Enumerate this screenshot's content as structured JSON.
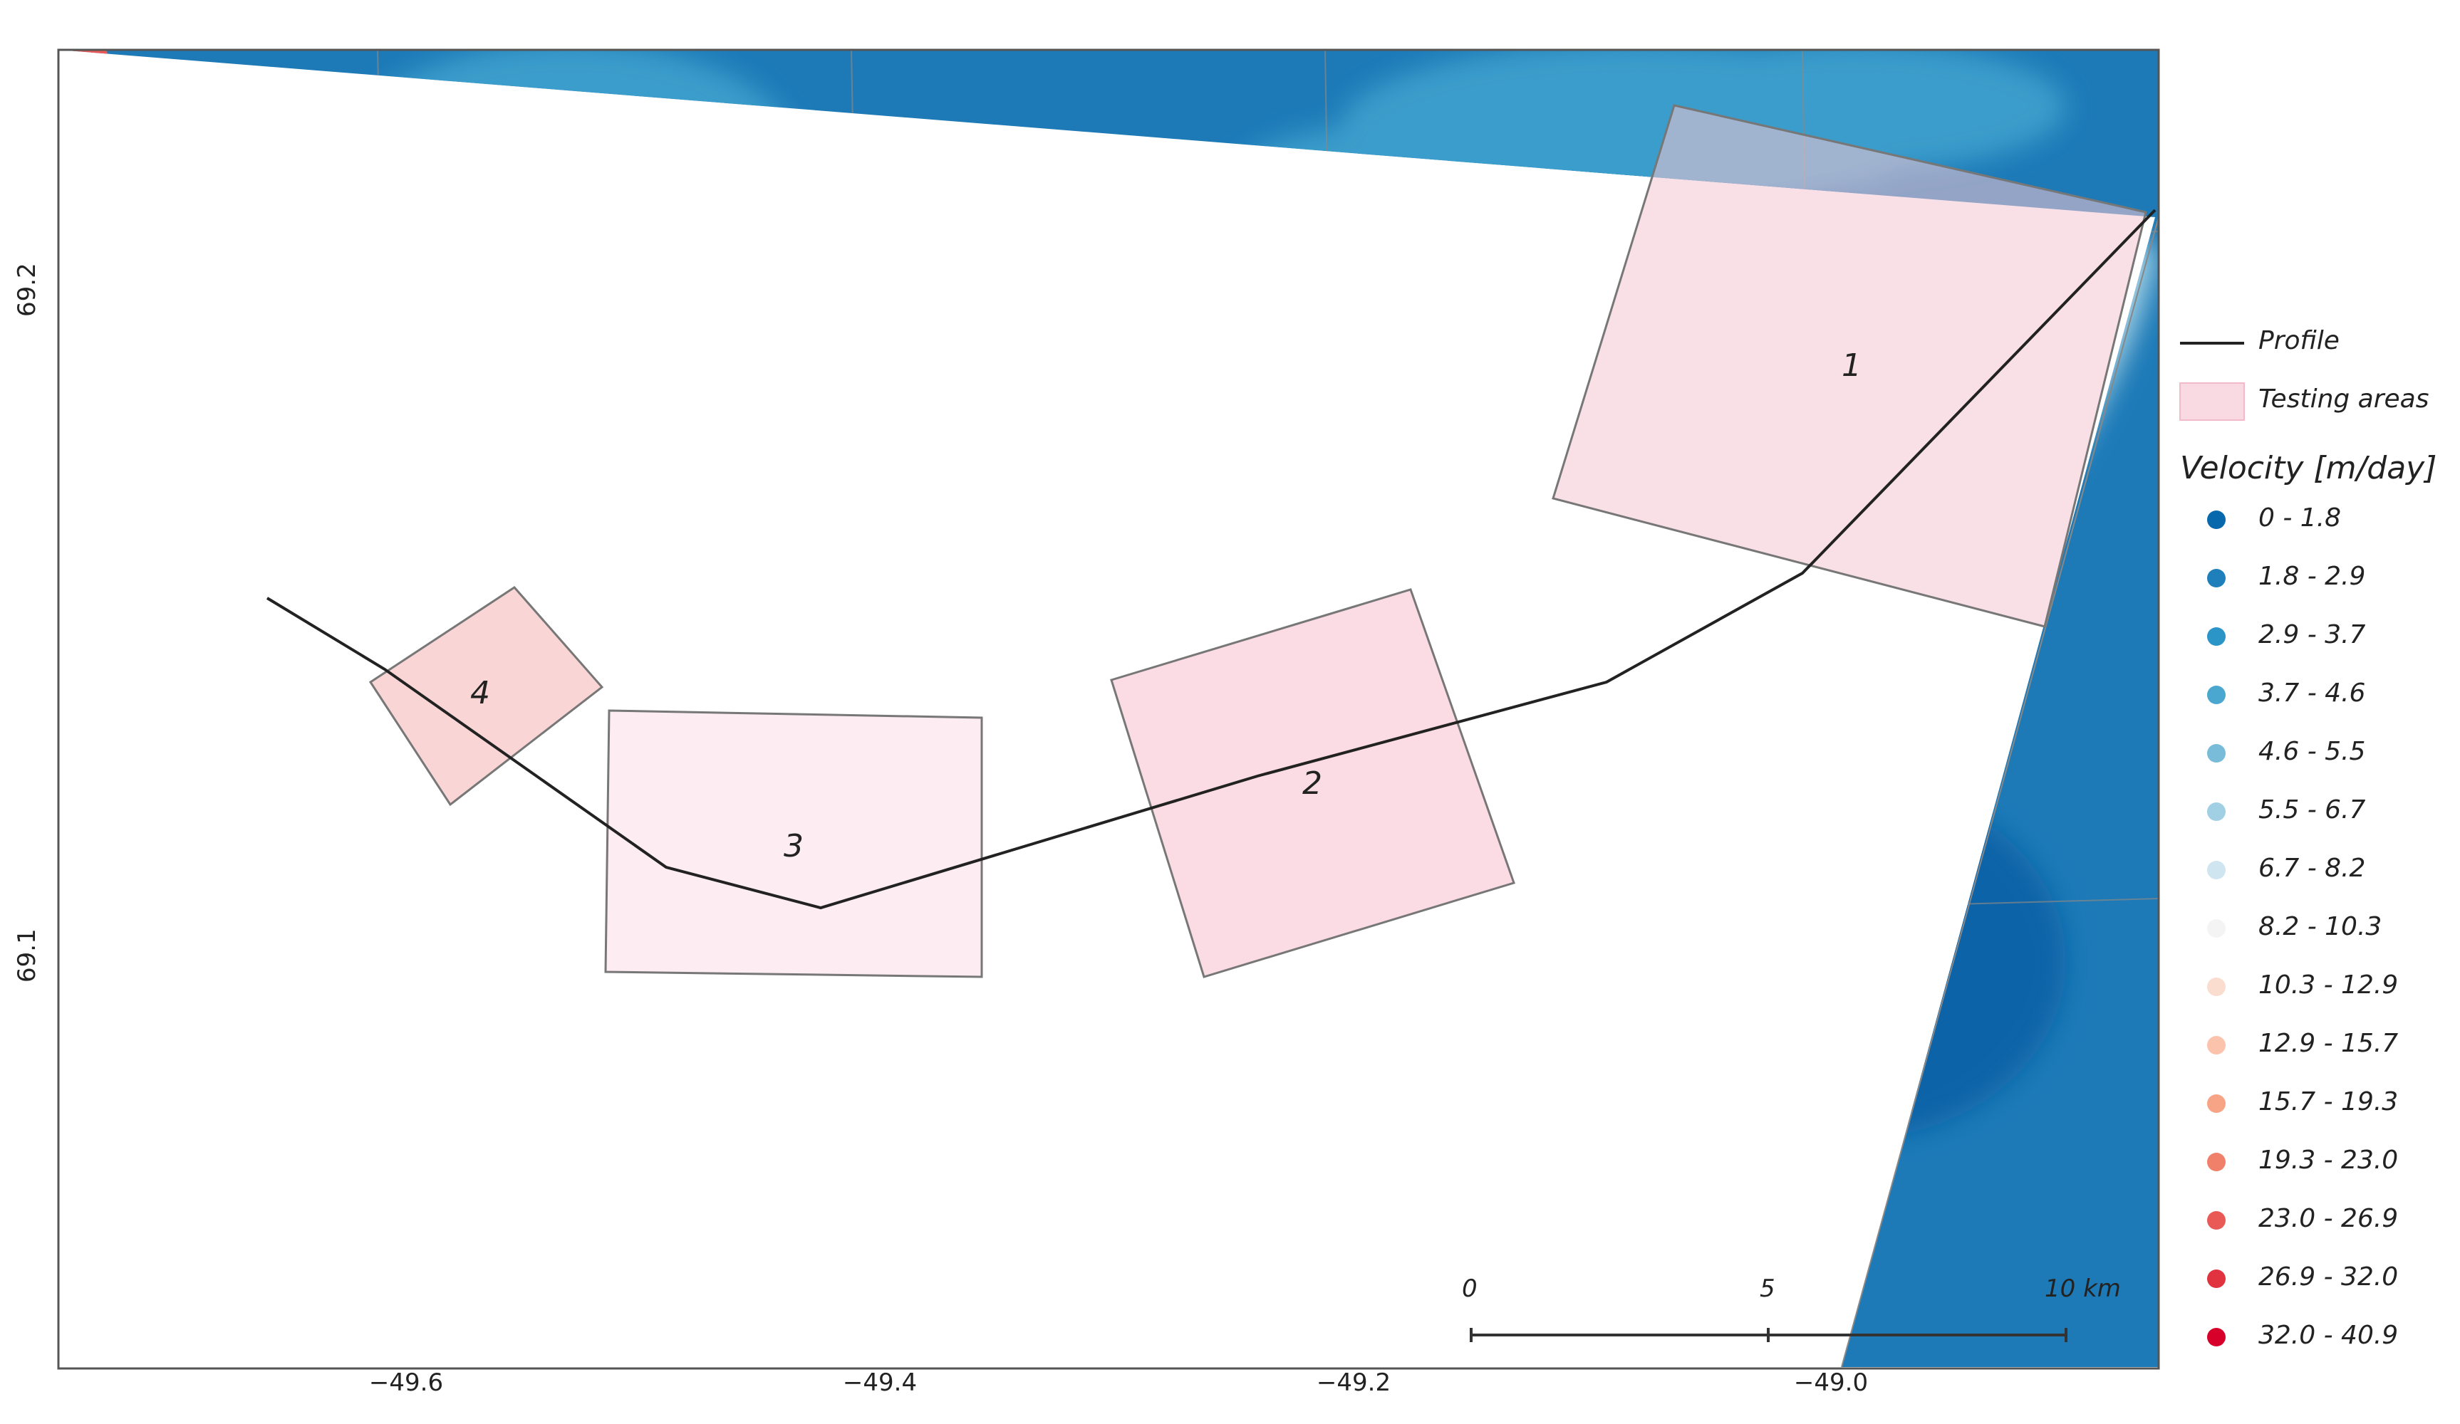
{
  "axes": {
    "x_ticks": [
      "−49.6",
      "−49.4",
      "−49.2",
      "−49.0"
    ],
    "y_ticks": [
      "69.2",
      "69.1"
    ]
  },
  "testing_areas": [
    {
      "label": "1"
    },
    {
      "label": "2"
    },
    {
      "label": "3"
    },
    {
      "label": "4"
    }
  ],
  "legend": {
    "profile_label": "Profile",
    "testing_areas_label": "Testing areas",
    "velocity_title": "Velocity [m/day]",
    "classes": [
      {
        "label": "0 - 1.8",
        "color": "#0868ac"
      },
      {
        "label": "1.8 - 2.9",
        "color": "#1f7fbb"
      },
      {
        "label": "2.9 - 3.7",
        "color": "#2b95c7"
      },
      {
        "label": "3.7 - 4.6",
        "color": "#4aa7cf"
      },
      {
        "label": "4.6 - 5.5",
        "color": "#78bcd9"
      },
      {
        "label": "5.5 - 6.7",
        "color": "#a1d0e4"
      },
      {
        "label": "6.7 - 8.2",
        "color": "#cfe6f0"
      },
      {
        "label": "8.2 - 10.3",
        "color": "#f4f4f4"
      },
      {
        "label": "10.3 - 12.9",
        "color": "#fbddd0"
      },
      {
        "label": "12.9 - 15.7",
        "color": "#fbc3ac"
      },
      {
        "label": "15.7 - 19.3",
        "color": "#f7a486"
      },
      {
        "label": "19.3 - 23.0",
        "color": "#f1806a"
      },
      {
        "label": "23.0 - 26.9",
        "color": "#e95a57"
      },
      {
        "label": "26.9 - 32.0",
        "color": "#e0333f"
      },
      {
        "label": "32.0 - 40.9",
        "color": "#d7002a"
      }
    ]
  },
  "scale_bar": {
    "labels": [
      "0",
      "5",
      "10 km"
    ]
  }
}
